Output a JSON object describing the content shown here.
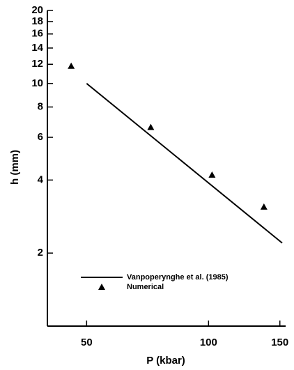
{
  "chart_data": {
    "type": "line",
    "xlabel": "P (kbar)",
    "ylabel": "h (mm)",
    "xscale": "log",
    "yscale": "log",
    "xlim": [
      40,
      155
    ],
    "ylim": [
      1,
      20
    ],
    "xticks": [
      50,
      100,
      150
    ],
    "yticks": [
      2,
      4,
      6,
      8,
      10,
      12,
      14,
      16,
      18,
      20
    ],
    "legend": "lower left",
    "series": [
      {
        "name": "Vanpoperynghe et al. (1985)",
        "color": "#000000",
        "marker": "none",
        "x": [
          50,
          152
        ],
        "values": [
          10,
          2.2
        ]
      },
      {
        "name": "Numerical",
        "color": "#000000",
        "marker": "triangle",
        "x": [
          45.8,
          72,
          102,
          137
        ],
        "values": [
          11.8,
          6.6,
          4.2,
          3.1
        ]
      }
    ]
  }
}
